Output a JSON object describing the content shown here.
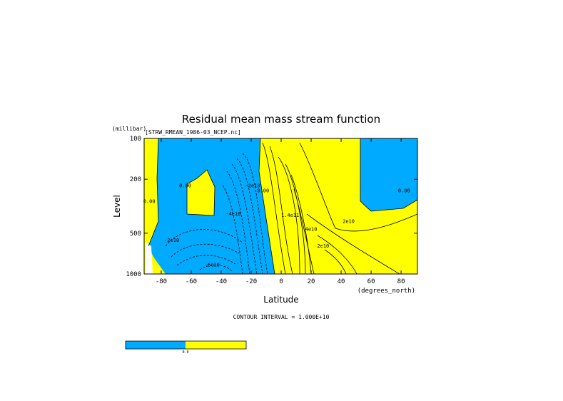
{
  "chart_data": {
    "type": "contour",
    "title": "Residual mean mass stream function",
    "subtitle": "[STRW_RMEAN_1986-03_NCEP.nc]",
    "x_label": "Latitude",
    "x_units": "(degrees_north)",
    "y_label": "Level",
    "y_units": "(millibar)",
    "xlim": [
      -91.4,
      90.9
    ],
    "xticks": [
      -80,
      -60,
      -40,
      -20,
      0,
      20,
      40,
      60,
      80
    ],
    "ylim": [
      100,
      1000
    ],
    "yticks": [
      100,
      200,
      500,
      1000
    ],
    "y_log": true,
    "y_reversed": true,
    "footnote": "CONTOUR INTERVAL = 1.000E+10",
    "colors": {
      "negative": "#00aaff",
      "positive": "#ffff00"
    },
    "colorbar_label": "0.0",
    "annotations": [
      {
        "text": "0.00",
        "x": -88,
        "y": 300
      },
      {
        "text": "0.00",
        "x": -64,
        "y": 230
      },
      {
        "text": "-2e10",
        "x": -73,
        "y": 580
      },
      {
        "text": "-4e10",
        "x": -32,
        "y": 370
      },
      {
        "text": "-2e10",
        "x": -19,
        "y": 230
      },
      {
        "text": "-6e10",
        "x": -46,
        "y": 880
      },
      {
        "text": "0.00",
        "x": -12,
        "y": 250
      },
      {
        "text": "1.4e11",
        "x": 6,
        "y": 380
      },
      {
        "text": "4e10",
        "x": 20,
        "y": 480
      },
      {
        "text": "2e10",
        "x": 45,
        "y": 420
      },
      {
        "text": "2e10",
        "x": 28,
        "y": 640
      },
      {
        "text": "0.00",
        "x": 82,
        "y": 250
      }
    ]
  }
}
